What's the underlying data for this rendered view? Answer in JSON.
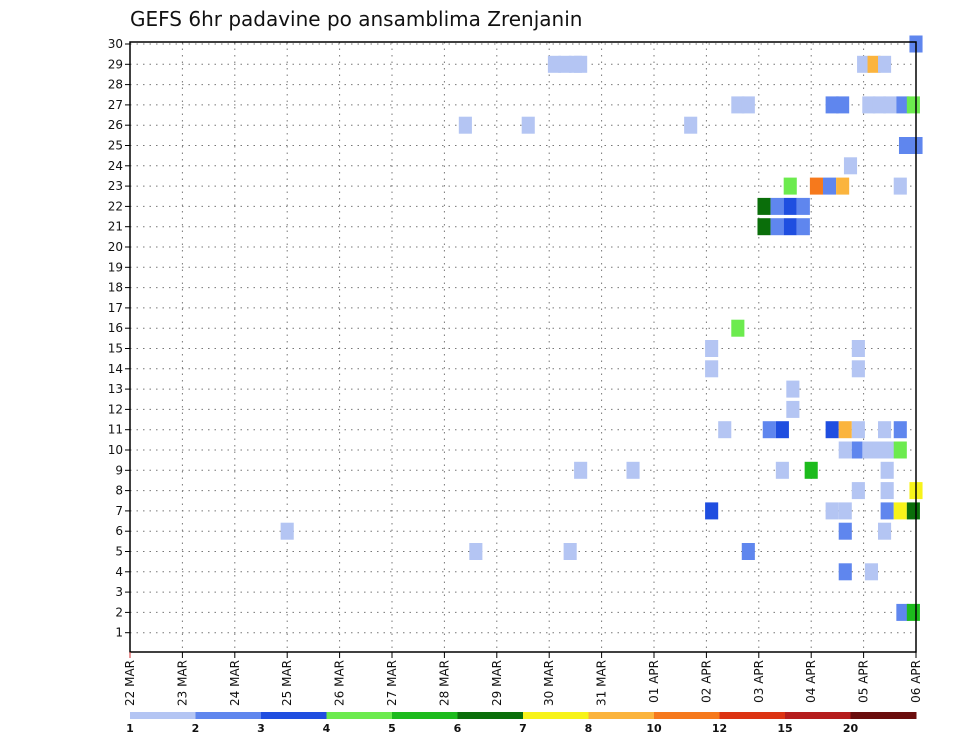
{
  "chart_data": {
    "type": "heatmap",
    "title": "GEFS 6hr padavine po ansamblima Zrenjanin",
    "y_categories": [
      "1",
      "2",
      "3",
      "4",
      "5",
      "6",
      "7",
      "8",
      "9",
      "10",
      "11",
      "12",
      "13",
      "14",
      "15",
      "16",
      "17",
      "18",
      "19",
      "20",
      "21",
      "22",
      "23",
      "24",
      "25",
      "26",
      "27",
      "28",
      "29",
      "30"
    ],
    "x_tick_labels": [
      "22 MAR",
      "23 MAR",
      "24 MAR",
      "25 MAR",
      "26 MAR",
      "27 MAR",
      "28 MAR",
      "29 MAR",
      "30 MAR",
      "31 MAR",
      "01 APR",
      "02 APR",
      "03 APR",
      "04 APR",
      "05 APR",
      "06 APR"
    ],
    "x_range_days": [
      0,
      15
    ],
    "time_step_hours": 6,
    "grid": "dotted",
    "legend": {
      "placement": "bottom",
      "thresholds": [
        "1",
        "2",
        "3",
        "4",
        "5",
        "6",
        "7",
        "8",
        "10",
        "12",
        "15",
        "20"
      ],
      "colors": [
        "#b4c5f3",
        "#5f86ee",
        "#1f4ee0",
        "#6ceb4e",
        "#1cbb1c",
        "#0a6e0a",
        "#f7f31a",
        "#fbb43d",
        "#f6791c",
        "#dc3313",
        "#b51d1d",
        "#6a0d0d"
      ]
    },
    "cells": [
      {
        "member": 30,
        "x": 15.0,
        "cls": 1
      },
      {
        "member": 29,
        "x": 8.1,
        "cls": 0
      },
      {
        "member": 29,
        "x": 8.3,
        "cls": 0
      },
      {
        "member": 29,
        "x": 8.5,
        "cls": 0
      },
      {
        "member": 29,
        "x": 8.6,
        "cls": 0
      },
      {
        "member": 29,
        "x": 14.0,
        "cls": 0
      },
      {
        "member": 29,
        "x": 14.2,
        "cls": 7
      },
      {
        "member": 29,
        "x": 14.4,
        "cls": 0
      },
      {
        "member": 27,
        "x": 11.6,
        "cls": 0
      },
      {
        "member": 27,
        "x": 11.8,
        "cls": 0
      },
      {
        "member": 27,
        "x": 13.4,
        "cls": 1
      },
      {
        "member": 27,
        "x": 13.6,
        "cls": 1
      },
      {
        "member": 27,
        "x": 14.1,
        "cls": 0
      },
      {
        "member": 27,
        "x": 14.3,
        "cls": 0
      },
      {
        "member": 27,
        "x": 14.5,
        "cls": 0
      },
      {
        "member": 27,
        "x": 14.75,
        "cls": 1
      },
      {
        "member": 27,
        "x": 14.95,
        "cls": 3
      },
      {
        "member": 26,
        "x": 6.4,
        "cls": 0
      },
      {
        "member": 26,
        "x": 7.6,
        "cls": 0
      },
      {
        "member": 26,
        "x": 10.7,
        "cls": 0
      },
      {
        "member": 25,
        "x": 14.8,
        "cls": 1
      },
      {
        "member": 25,
        "x": 15.0,
        "cls": 1
      },
      {
        "member": 24,
        "x": 13.75,
        "cls": 0
      },
      {
        "member": 23,
        "x": 12.6,
        "cls": 3
      },
      {
        "member": 23,
        "x": 13.1,
        "cls": 8
      },
      {
        "member": 23,
        "x": 13.35,
        "cls": 1
      },
      {
        "member": 23,
        "x": 13.6,
        "cls": 7
      },
      {
        "member": 23,
        "x": 14.7,
        "cls": 0
      },
      {
        "member": 22,
        "x": 12.1,
        "cls": 5
      },
      {
        "member": 22,
        "x": 12.35,
        "cls": 1
      },
      {
        "member": 22,
        "x": 12.6,
        "cls": 2
      },
      {
        "member": 22,
        "x": 12.85,
        "cls": 1
      },
      {
        "member": 21,
        "x": 12.1,
        "cls": 5
      },
      {
        "member": 21,
        "x": 12.35,
        "cls": 1
      },
      {
        "member": 21,
        "x": 12.6,
        "cls": 2
      },
      {
        "member": 21,
        "x": 12.85,
        "cls": 1
      },
      {
        "member": 16,
        "x": 11.6,
        "cls": 3
      },
      {
        "member": 15,
        "x": 11.1,
        "cls": 0
      },
      {
        "member": 15,
        "x": 13.9,
        "cls": 0
      },
      {
        "member": 14,
        "x": 11.1,
        "cls": 0
      },
      {
        "member": 14,
        "x": 13.9,
        "cls": 0
      },
      {
        "member": 13,
        "x": 12.65,
        "cls": 0
      },
      {
        "member": 12,
        "x": 12.65,
        "cls": 0
      },
      {
        "member": 11,
        "x": 11.35,
        "cls": 0
      },
      {
        "member": 11,
        "x": 12.2,
        "cls": 1
      },
      {
        "member": 11,
        "x": 12.45,
        "cls": 2
      },
      {
        "member": 11,
        "x": 13.4,
        "cls": 2
      },
      {
        "member": 11,
        "x": 13.65,
        "cls": 7
      },
      {
        "member": 11,
        "x": 13.9,
        "cls": 0
      },
      {
        "member": 11,
        "x": 14.4,
        "cls": 0
      },
      {
        "member": 11,
        "x": 14.7,
        "cls": 1
      },
      {
        "member": 10,
        "x": 13.65,
        "cls": 0
      },
      {
        "member": 10,
        "x": 13.9,
        "cls": 1
      },
      {
        "member": 10,
        "x": 14.1,
        "cls": 0
      },
      {
        "member": 10,
        "x": 14.3,
        "cls": 0
      },
      {
        "member": 10,
        "x": 14.5,
        "cls": 0
      },
      {
        "member": 10,
        "x": 14.7,
        "cls": 3
      },
      {
        "member": 9,
        "x": 8.6,
        "cls": 0
      },
      {
        "member": 9,
        "x": 9.6,
        "cls": 0
      },
      {
        "member": 9,
        "x": 12.45,
        "cls": 0
      },
      {
        "member": 9,
        "x": 13.0,
        "cls": 4
      },
      {
        "member": 9,
        "x": 14.45,
        "cls": 0
      },
      {
        "member": 8,
        "x": 13.9,
        "cls": 0
      },
      {
        "member": 8,
        "x": 14.45,
        "cls": 0
      },
      {
        "member": 8,
        "x": 15.0,
        "cls": 6
      },
      {
        "member": 7,
        "x": 11.1,
        "cls": 2
      },
      {
        "member": 7,
        "x": 13.4,
        "cls": 0
      },
      {
        "member": 7,
        "x": 13.65,
        "cls": 0
      },
      {
        "member": 7,
        "x": 14.45,
        "cls": 1
      },
      {
        "member": 7,
        "x": 14.7,
        "cls": 6
      },
      {
        "member": 7,
        "x": 14.95,
        "cls": 5
      },
      {
        "member": 6,
        "x": 3.0,
        "cls": 0
      },
      {
        "member": 6,
        "x": 13.65,
        "cls": 1
      },
      {
        "member": 6,
        "x": 14.4,
        "cls": 0
      },
      {
        "member": 5,
        "x": 6.6,
        "cls": 0
      },
      {
        "member": 5,
        "x": 8.4,
        "cls": 0
      },
      {
        "member": 5,
        "x": 11.8,
        "cls": 1
      },
      {
        "member": 4,
        "x": 13.65,
        "cls": 1
      },
      {
        "member": 4,
        "x": 14.15,
        "cls": 0
      },
      {
        "member": 2,
        "x": 14.75,
        "cls": 1
      },
      {
        "member": 2,
        "x": 14.95,
        "cls": 4
      }
    ]
  }
}
